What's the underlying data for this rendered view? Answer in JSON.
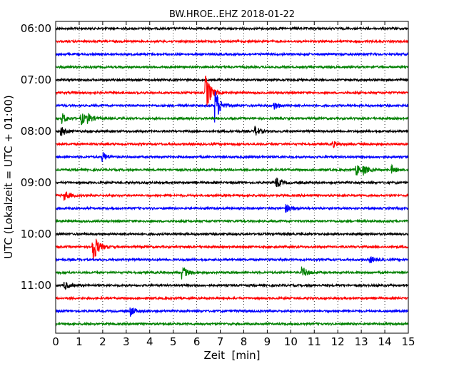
{
  "chart_data": {
    "type": "line",
    "title": "BW.HROE..EHZ 2018-01-22",
    "xlabel": "Zeit  [min]",
    "ylabel": "UTC (Lokalzeit = UTC + 01:00)",
    "xlim": [
      0,
      15
    ],
    "x_ticks": [
      "0",
      "1",
      "2",
      "3",
      "4",
      "5",
      "6",
      "7",
      "8",
      "9",
      "10",
      "11",
      "12",
      "13",
      "14",
      "15"
    ],
    "y_ticks": [
      "06:00",
      "07:00",
      "08:00",
      "09:00",
      "10:00",
      "11:00"
    ],
    "grid_x": true,
    "trace_colors": [
      "#000000",
      "#ff0000",
      "#0000ff",
      "#008000"
    ],
    "traces": [
      {
        "start": "06:00",
        "events": []
      },
      {
        "start": "06:15",
        "events": []
      },
      {
        "start": "06:30",
        "events": []
      },
      {
        "start": "06:45",
        "events": []
      },
      {
        "start": "07:00",
        "events": []
      },
      {
        "start": "07:15",
        "events": [
          {
            "t": 6.4,
            "amplitude": 1.0
          }
        ]
      },
      {
        "start": "07:30",
        "events": [
          {
            "t": 6.8,
            "amplitude": 0.9
          },
          {
            "t": 9.3,
            "amplitude": 0.2
          }
        ]
      },
      {
        "start": "07:45",
        "events": [
          {
            "t": 0.3,
            "amplitude": 0.25
          },
          {
            "t": 1.1,
            "amplitude": 0.3
          },
          {
            "t": 1.4,
            "amplitude": 0.2
          }
        ]
      },
      {
        "start": "08:00",
        "events": [
          {
            "t": 0.25,
            "amplitude": 0.25
          },
          {
            "t": 8.5,
            "amplitude": 0.25
          }
        ]
      },
      {
        "start": "08:15",
        "events": [
          {
            "t": 11.8,
            "amplitude": 0.15
          }
        ]
      },
      {
        "start": "08:30",
        "events": [
          {
            "t": 2.0,
            "amplitude": 0.25
          }
        ]
      },
      {
        "start": "08:45",
        "events": [
          {
            "t": 12.8,
            "amplitude": 0.3
          },
          {
            "t": 13.1,
            "amplitude": 0.2
          },
          {
            "t": 14.3,
            "amplitude": 0.2
          }
        ]
      },
      {
        "start": "09:00",
        "events": [
          {
            "t": 9.4,
            "amplitude": 0.25
          }
        ]
      },
      {
        "start": "09:15",
        "events": [
          {
            "t": 0.4,
            "amplitude": 0.25
          }
        ]
      },
      {
        "start": "09:30",
        "events": [
          {
            "t": 9.8,
            "amplitude": 0.2
          }
        ]
      },
      {
        "start": "09:45",
        "events": []
      },
      {
        "start": "10:00",
        "events": []
      },
      {
        "start": "10:15",
        "events": [
          {
            "t": 1.6,
            "amplitude": 0.85
          }
        ]
      },
      {
        "start": "10:30",
        "events": [
          {
            "t": 13.4,
            "amplitude": 0.15
          }
        ]
      },
      {
        "start": "10:45",
        "events": [
          {
            "t": 5.4,
            "amplitude": 0.35
          },
          {
            "t": 10.5,
            "amplitude": 0.3
          }
        ]
      },
      {
        "start": "11:00",
        "events": [
          {
            "t": 0.4,
            "amplitude": 0.2
          }
        ]
      },
      {
        "start": "11:15",
        "events": []
      },
      {
        "start": "11:30",
        "events": [
          {
            "t": 3.2,
            "amplitude": 0.25
          }
        ]
      },
      {
        "start": "11:45",
        "events": []
      }
    ]
  }
}
